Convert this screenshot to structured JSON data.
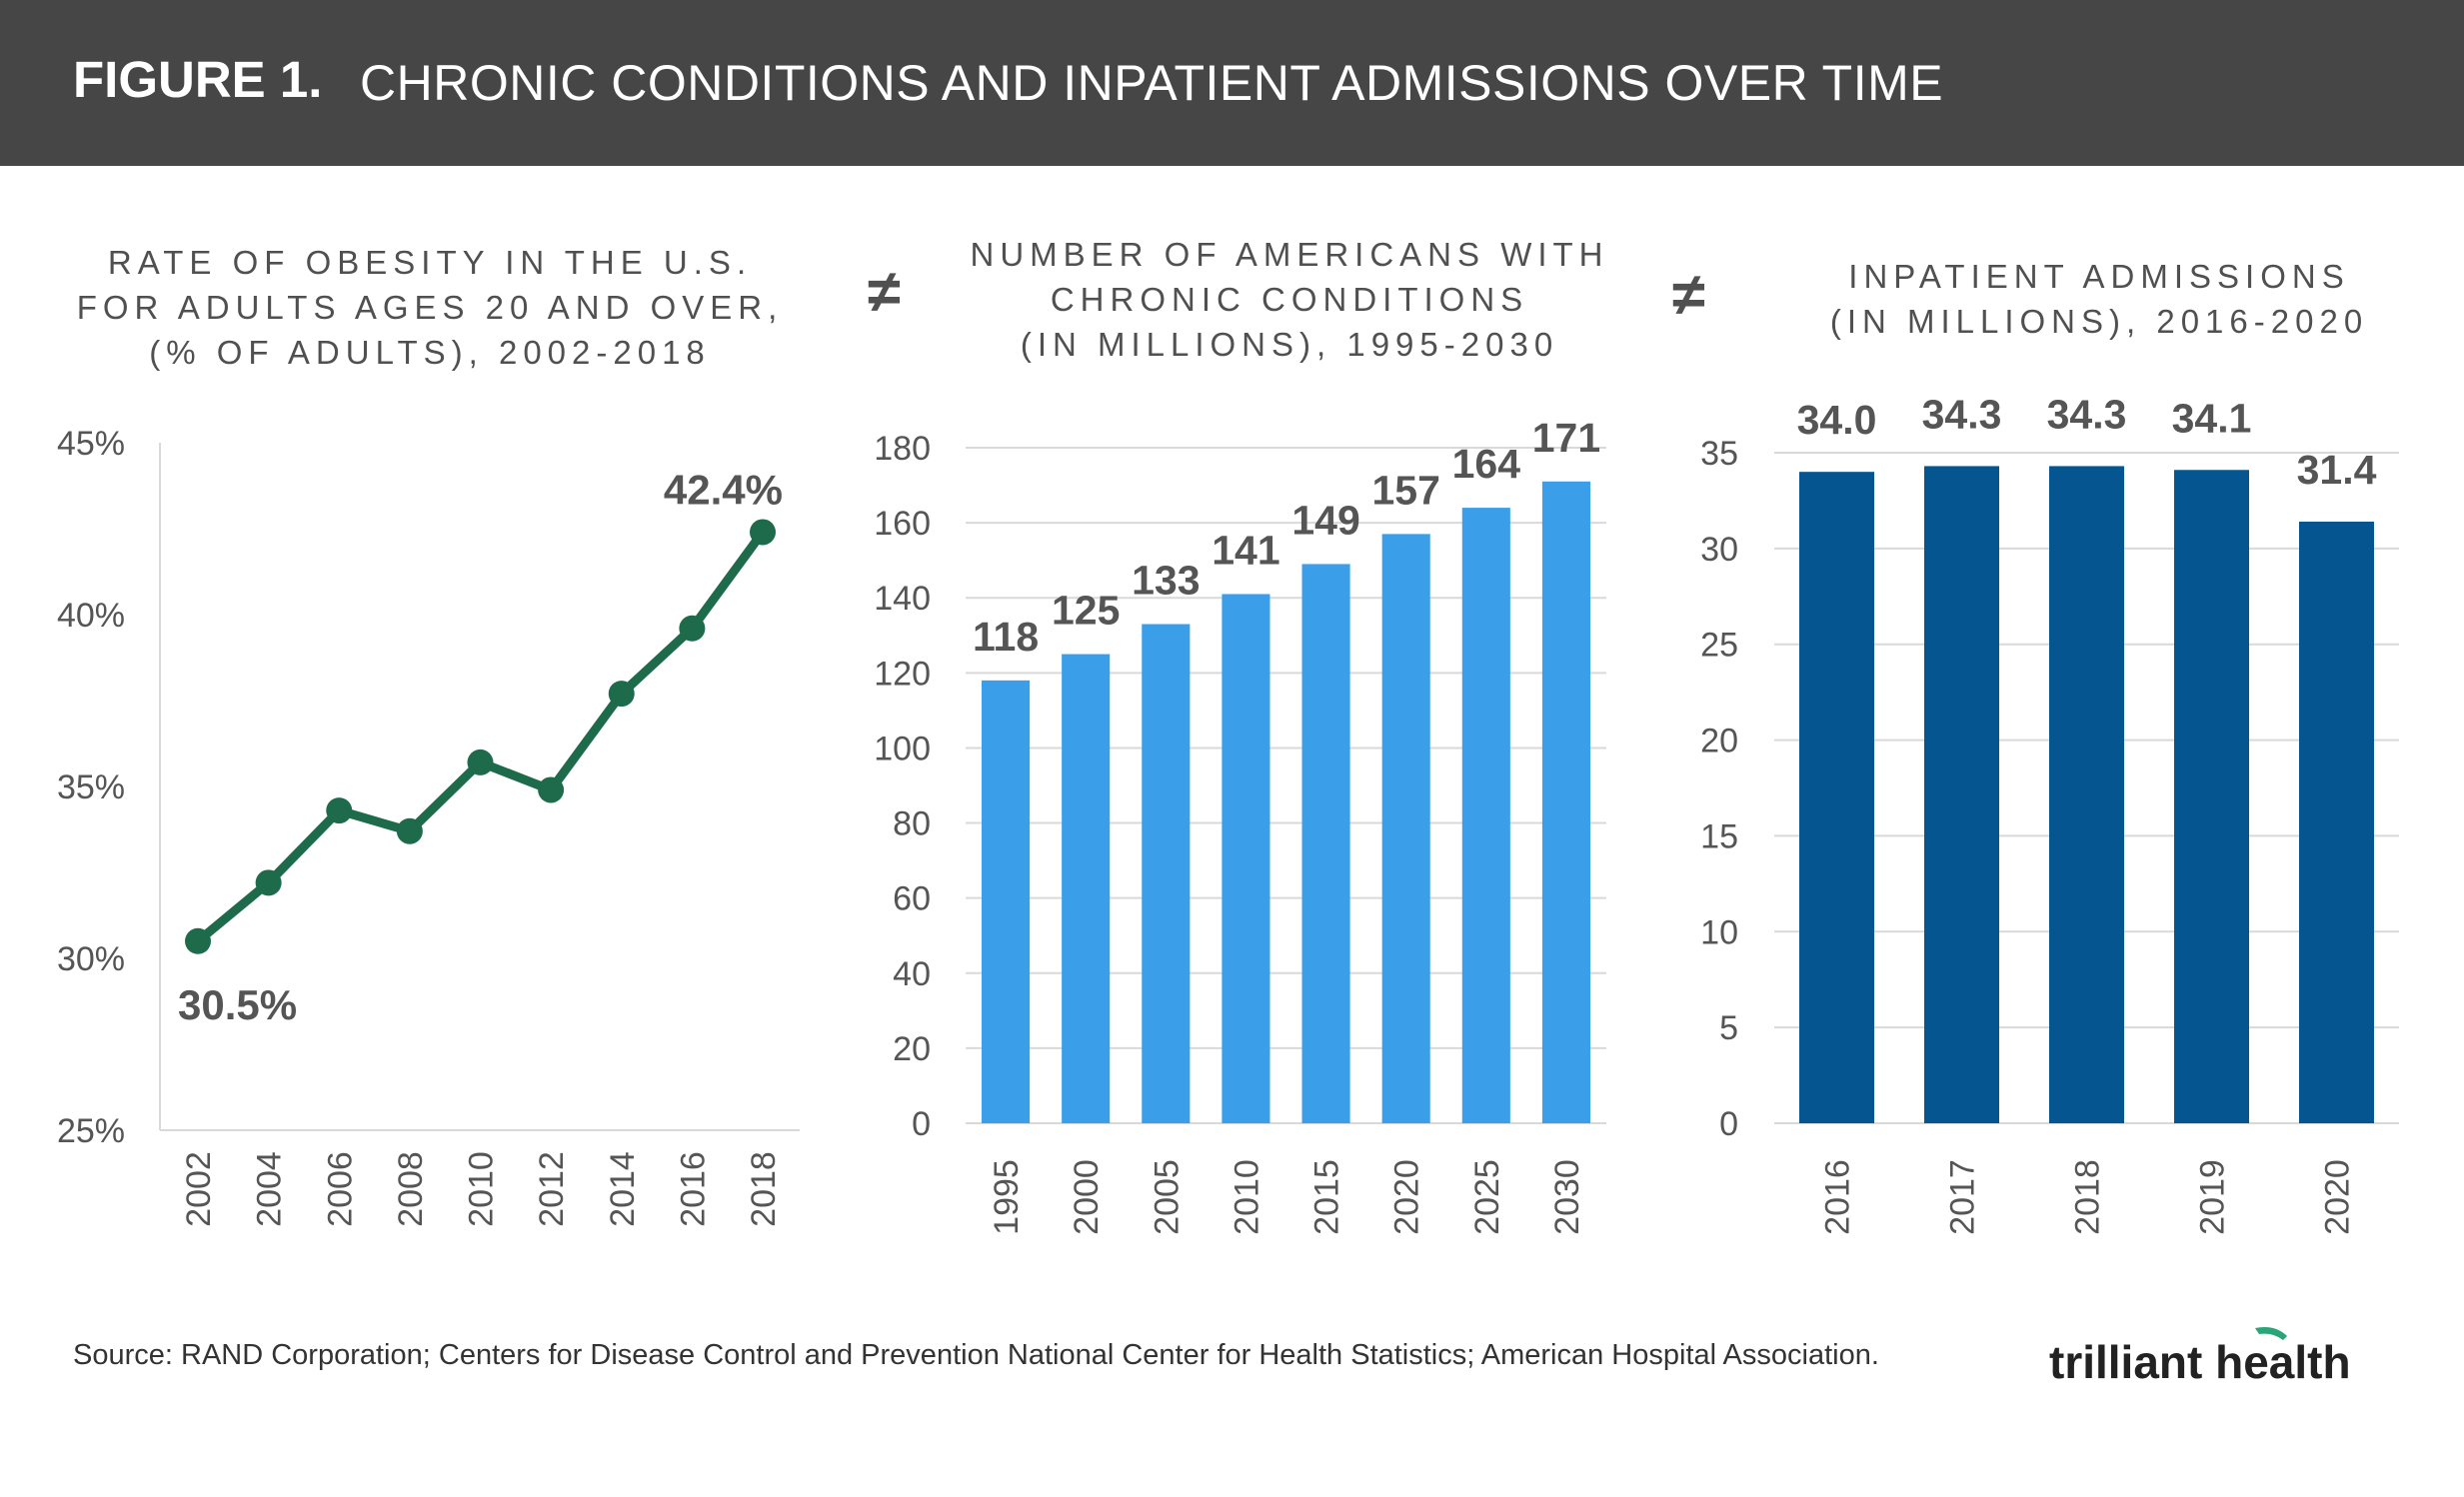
{
  "header": {
    "figure_label": "FIGURE 1.",
    "title": "CHRONIC CONDITIONS AND INPATIENT ADMISSIONS OVER TIME"
  },
  "separators": {
    "symbol": "≠"
  },
  "chart_data": [
    {
      "type": "line",
      "title_lines": [
        "RATE OF OBESITY IN THE U.S.",
        "FOR ADULTS AGES 20 AND OVER,",
        "(% OF ADULTS), 2002-2018"
      ],
      "x": [
        "2002",
        "2004",
        "2006",
        "2008",
        "2010",
        "2012",
        "2014",
        "2016",
        "2018"
      ],
      "values": [
        30.5,
        32.2,
        34.3,
        33.7,
        35.7,
        34.9,
        37.7,
        39.6,
        42.4
      ],
      "yticks": [
        "25%",
        "30%",
        "35%",
        "40%",
        "45%"
      ],
      "ylim": [
        25,
        45
      ],
      "annotations": [
        {
          "index": 0,
          "text": "30.5%"
        },
        {
          "index": 8,
          "text": "42.4%"
        }
      ],
      "color": "#1e6b4c",
      "grid": false
    },
    {
      "type": "bar",
      "title_lines": [
        "NUMBER OF AMERICANS WITH",
        "CHRONIC CONDITIONS",
        "(IN MILLIONS), 1995-2030"
      ],
      "categories": [
        "1995",
        "2000",
        "2005",
        "2010",
        "2015",
        "2020",
        "2025",
        "2030"
      ],
      "values": [
        118,
        125,
        133,
        141,
        149,
        157,
        164,
        171
      ],
      "value_labels": [
        "118",
        "125",
        "133",
        "141",
        "149",
        "157",
        "164",
        "171"
      ],
      "yticks": [
        "0",
        "20",
        "40",
        "60",
        "80",
        "100",
        "120",
        "140",
        "160",
        "180"
      ],
      "ylim": [
        0,
        180
      ],
      "color": "#3a9ee8",
      "grid": true
    },
    {
      "type": "bar",
      "title_lines": [
        "INPATIENT ADMISSIONS",
        "(IN MILLIONS), 2016-2020"
      ],
      "categories": [
        "2016",
        "2017",
        "2018",
        "2019",
        "2020"
      ],
      "values": [
        34.0,
        34.3,
        34.3,
        34.1,
        31.4
      ],
      "value_labels": [
        "34.0",
        "34.3",
        "34.3",
        "34.1",
        "31.4"
      ],
      "yticks": [
        "0",
        "5",
        "10",
        "15",
        "20",
        "25",
        "30",
        "35"
      ],
      "ylim": [
        0,
        35
      ],
      "color": "#055591",
      "grid": true
    }
  ],
  "footer": {
    "source": "Source: RAND Corporation; Centers for Disease Control and Prevention National Center for Health Statistics; American Hospital Association.",
    "brand": "trilliant health",
    "brand_accent": "#2aa57a"
  }
}
